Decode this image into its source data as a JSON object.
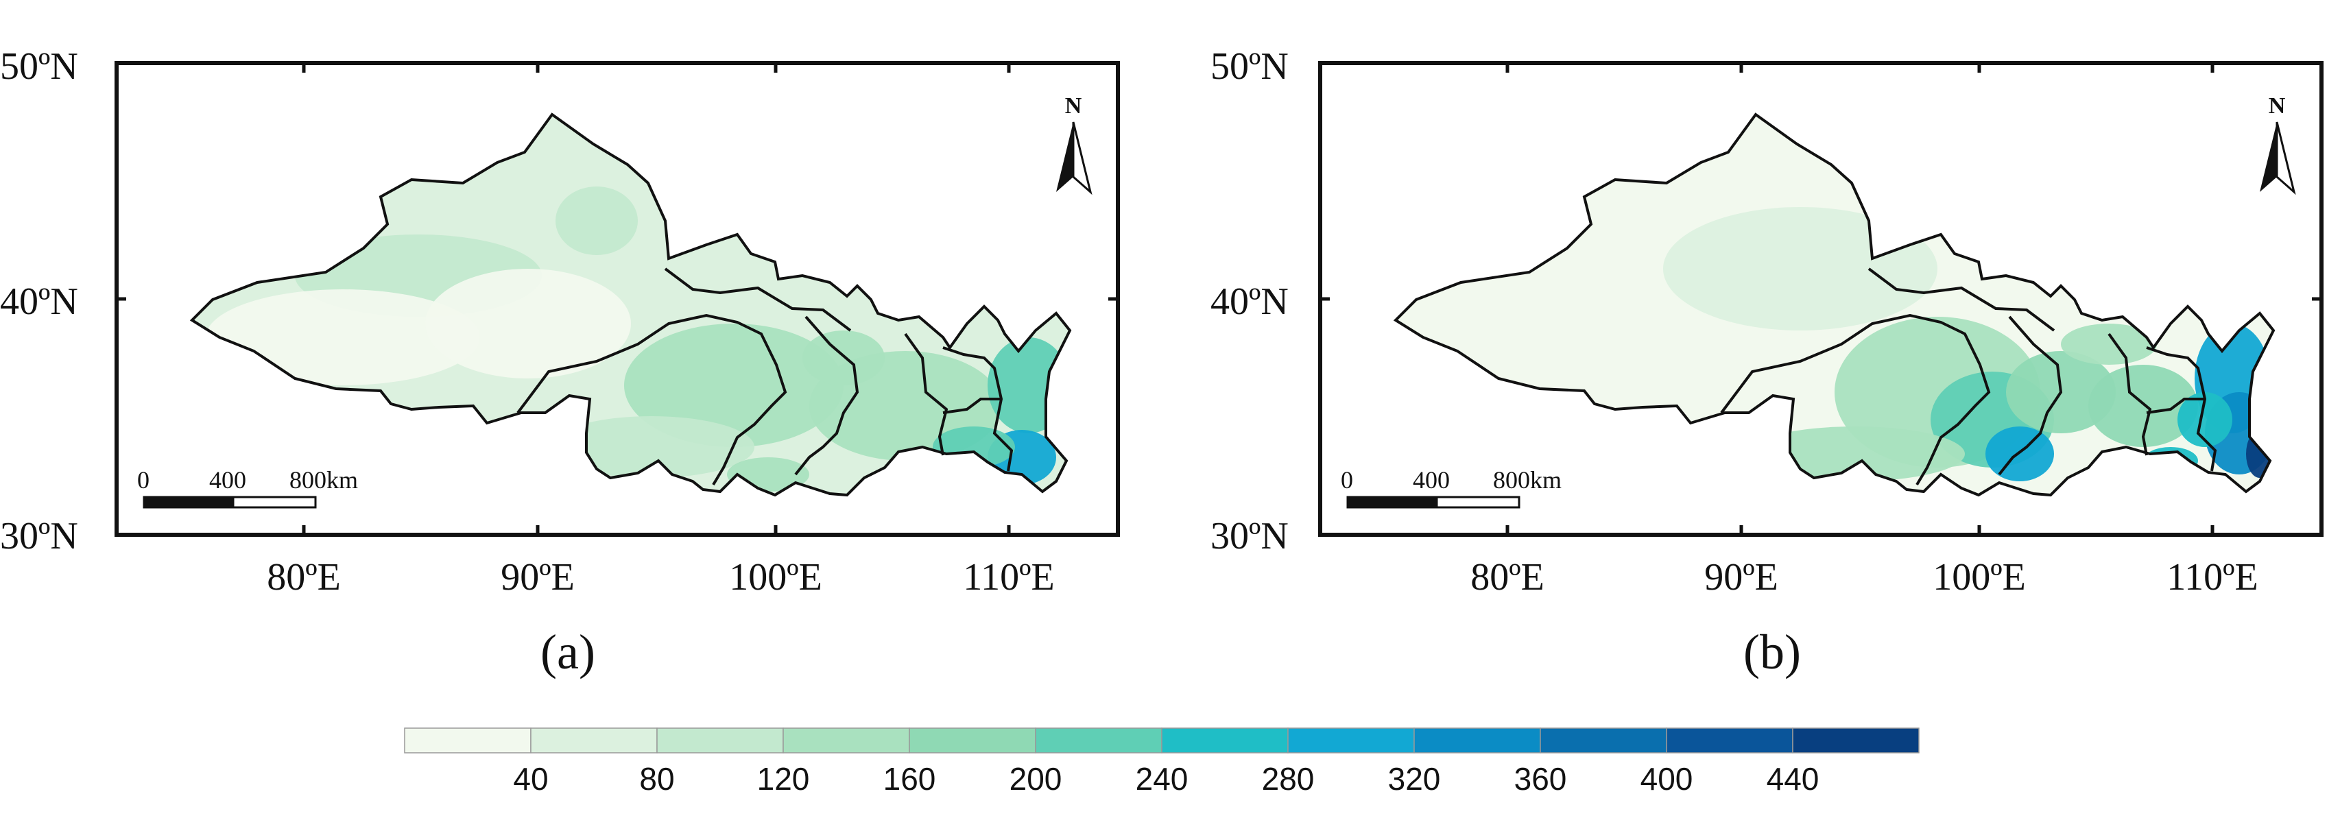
{
  "panels": [
    {
      "label": "(a)",
      "x_ticks": [
        "80ºE",
        "90ºE",
        "100ºE",
        "110ºE"
      ],
      "y_ticks": [
        "50ºN",
        "40ºN",
        "30ºN"
      ],
      "north_arrow": "N",
      "scale_bar": {
        "labels": [
          "0",
          "400",
          "800km"
        ]
      },
      "intensity": "low"
    },
    {
      "label": "(b)",
      "x_ticks": [
        "80ºE",
        "90ºE",
        "100ºE",
        "110ºE"
      ],
      "y_ticks": [
        "50ºN",
        "40ºN",
        "30ºN"
      ],
      "north_arrow": "N",
      "scale_bar": {
        "labels": [
          "0",
          "400",
          "800km"
        ]
      },
      "intensity": "high"
    }
  ],
  "colorbar": {
    "ticks": [
      "40",
      "80",
      "120",
      "160",
      "200",
      "240",
      "280",
      "320",
      "360",
      "400",
      "440"
    ],
    "colors": [
      "#f2f9ee",
      "#dcf1df",
      "#c3e9cf",
      "#a9e1bf",
      "#8fd9b4",
      "#5fcfb5",
      "#1fbec6",
      "#12a8d3",
      "#0b8cc5",
      "#0a6fae",
      "#0a559a",
      "#083f80"
    ]
  }
}
